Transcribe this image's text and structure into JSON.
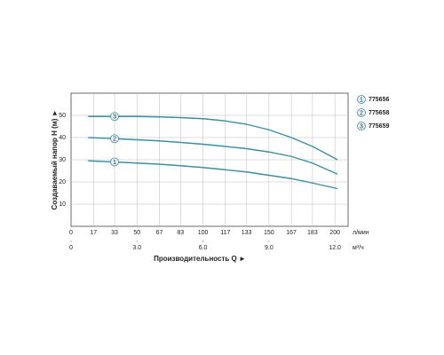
{
  "chart_data": {
    "type": "line",
    "ylabel": "Создаваемый напор H (м) ►",
    "xlabel": "Производительность Q ►",
    "xunit": "л/мин",
    "x2unit": "м³/ч",
    "x": [
      13,
      33,
      50,
      67,
      83,
      100,
      117,
      133,
      150,
      167,
      183,
      202
    ],
    "series": [
      {
        "name": "775656",
        "label": "1",
        "color": "#3b8ea5",
        "values": [
          29.5,
          29,
          28.5,
          28,
          27.3,
          26.5,
          25.5,
          24.5,
          23,
          21.5,
          19.5,
          17
        ]
      },
      {
        "name": "775658",
        "label": "2",
        "color": "#3b8ea5",
        "values": [
          40,
          39.5,
          39,
          38.5,
          37.8,
          37,
          36,
          35,
          33.5,
          31.5,
          28.5,
          23.5
        ]
      },
      {
        "name": "775659",
        "label": "3",
        "color": "#3b8ea5",
        "values": [
          49.5,
          49.5,
          49.5,
          49.3,
          49,
          48.5,
          47.5,
          46,
          43.5,
          40,
          36,
          30
        ]
      }
    ],
    "marker_index": 1,
    "xlim": [
      0,
      210
    ],
    "xticks": [
      0,
      17,
      33,
      50,
      67,
      83,
      100,
      117,
      133,
      150,
      167,
      183,
      200
    ],
    "x2lim": [
      0,
      12.6
    ],
    "x2ticks": [
      0,
      {
        "value": 3,
        "label": "3.0"
      },
      {
        "value": 6,
        "label": "6.0"
      },
      {
        "value": 9,
        "label": "9.0"
      },
      {
        "value": 12,
        "label": "12.0"
      }
    ],
    "ylim": [
      0,
      60
    ],
    "yticks": [
      10,
      20,
      30,
      40,
      50
    ],
    "grid": true,
    "legend": "right"
  }
}
